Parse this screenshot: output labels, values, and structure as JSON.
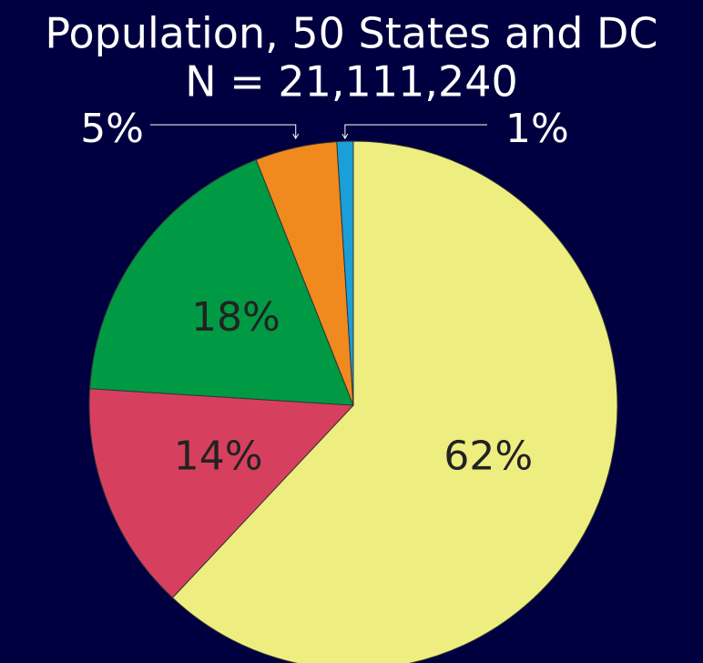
{
  "chart_data": {
    "type": "pie",
    "title": "Population, 50 States and DC",
    "subtitle": "N = 21,111,240",
    "values": [
      62,
      14,
      18,
      5,
      1
    ],
    "value_labels": [
      "62%",
      "14%",
      "18%",
      "5%",
      "1%"
    ],
    "colors": [
      "#eeee80",
      "#d6405e",
      "#009a44",
      "#f08a1e",
      "#1a9fd8"
    ]
  }
}
